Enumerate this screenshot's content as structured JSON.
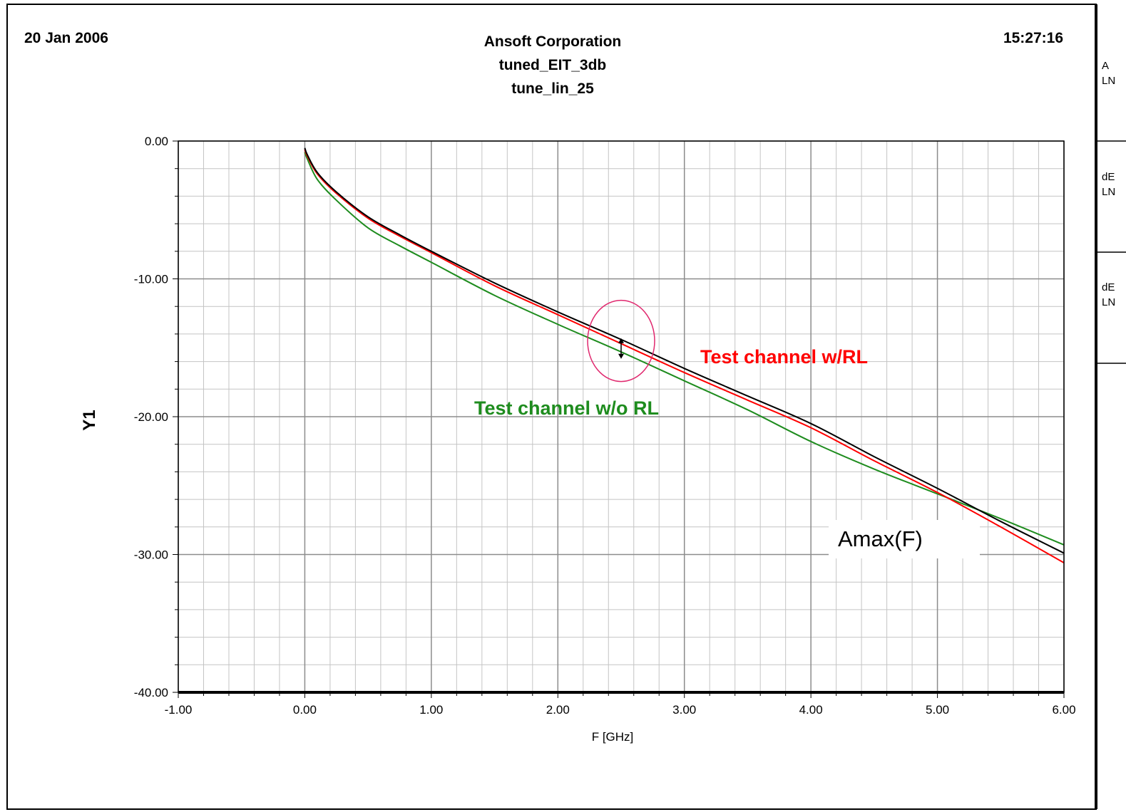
{
  "header": {
    "date": "20 Jan 2006",
    "company": "Ansoft Corporation",
    "project": "tuned_EIT_3db",
    "plot_name": "tune_lin_25",
    "time": "15:27:16"
  },
  "legend_panel": {
    "entries": [
      {
        "line1": "A",
        "line2": "LN"
      },
      {
        "line1": "dE",
        "line2": "LN"
      },
      {
        "line1": "dE",
        "line2": "LN"
      }
    ]
  },
  "chart_data": {
    "type": "line",
    "title": "",
    "xlabel": "F [GHz]",
    "ylabel": "Y1",
    "xlim": [
      -1.0,
      6.0
    ],
    "ylim": [
      -40.0,
      0.0
    ],
    "x_ticks": [
      "-1.00",
      "0.00",
      "1.00",
      "2.00",
      "3.00",
      "4.00",
      "5.00",
      "6.00"
    ],
    "y_ticks": [
      "0.00",
      "-10.00",
      "-20.00",
      "-30.00",
      "-40.00"
    ],
    "grid": true,
    "series": [
      {
        "name": "Amax(F)",
        "color": "#000000",
        "x": [
          0.0,
          0.02,
          0.1,
          0.25,
          0.5,
          0.75,
          1.0,
          1.5,
          2.0,
          2.5,
          3.0,
          3.5,
          4.0,
          4.5,
          5.0,
          5.5,
          6.0
        ],
        "y": [
          -0.5,
          -1.0,
          -2.3,
          -3.7,
          -5.5,
          -6.8,
          -8.0,
          -10.3,
          -12.4,
          -14.4,
          -16.5,
          -18.5,
          -20.5,
          -22.9,
          -25.2,
          -27.6,
          -29.9
        ]
      },
      {
        "name": "Test channel w/RL",
        "color": "#ff0000",
        "x": [
          0.0,
          0.02,
          0.1,
          0.25,
          0.5,
          0.75,
          1.0,
          1.5,
          2.0,
          2.5,
          3.0,
          3.5,
          4.0,
          4.5,
          5.0,
          5.5,
          6.0
        ],
        "y": [
          -0.6,
          -1.1,
          -2.4,
          -3.8,
          -5.6,
          -6.9,
          -8.1,
          -10.5,
          -12.6,
          -14.7,
          -16.8,
          -18.8,
          -20.8,
          -23.2,
          -25.5,
          -28.0,
          -30.6
        ]
      },
      {
        "name": "Test channel w/o RL",
        "color": "#1e8c1e",
        "x": [
          0.0,
          0.02,
          0.1,
          0.25,
          0.5,
          0.75,
          1.0,
          1.5,
          2.0,
          2.5,
          3.0,
          3.5,
          4.0,
          4.5,
          5.0,
          5.5,
          6.0
        ],
        "y": [
          -0.8,
          -1.3,
          -2.8,
          -4.3,
          -6.3,
          -7.6,
          -8.8,
          -11.2,
          -13.3,
          -15.3,
          -17.4,
          -19.5,
          -21.8,
          -23.8,
          -25.6,
          -27.4,
          -29.3
        ]
      }
    ],
    "annotations": {
      "red_label": "Test channel w/RL",
      "green_label": "Test channel w/o RL",
      "black_label": "Amax(F)",
      "highlight_ellipse_center": [
        2.5,
        -14.5
      ],
      "arrow_from_to": [
        [
          2.5,
          -14.3
        ],
        [
          2.5,
          -15.8
        ]
      ]
    }
  }
}
